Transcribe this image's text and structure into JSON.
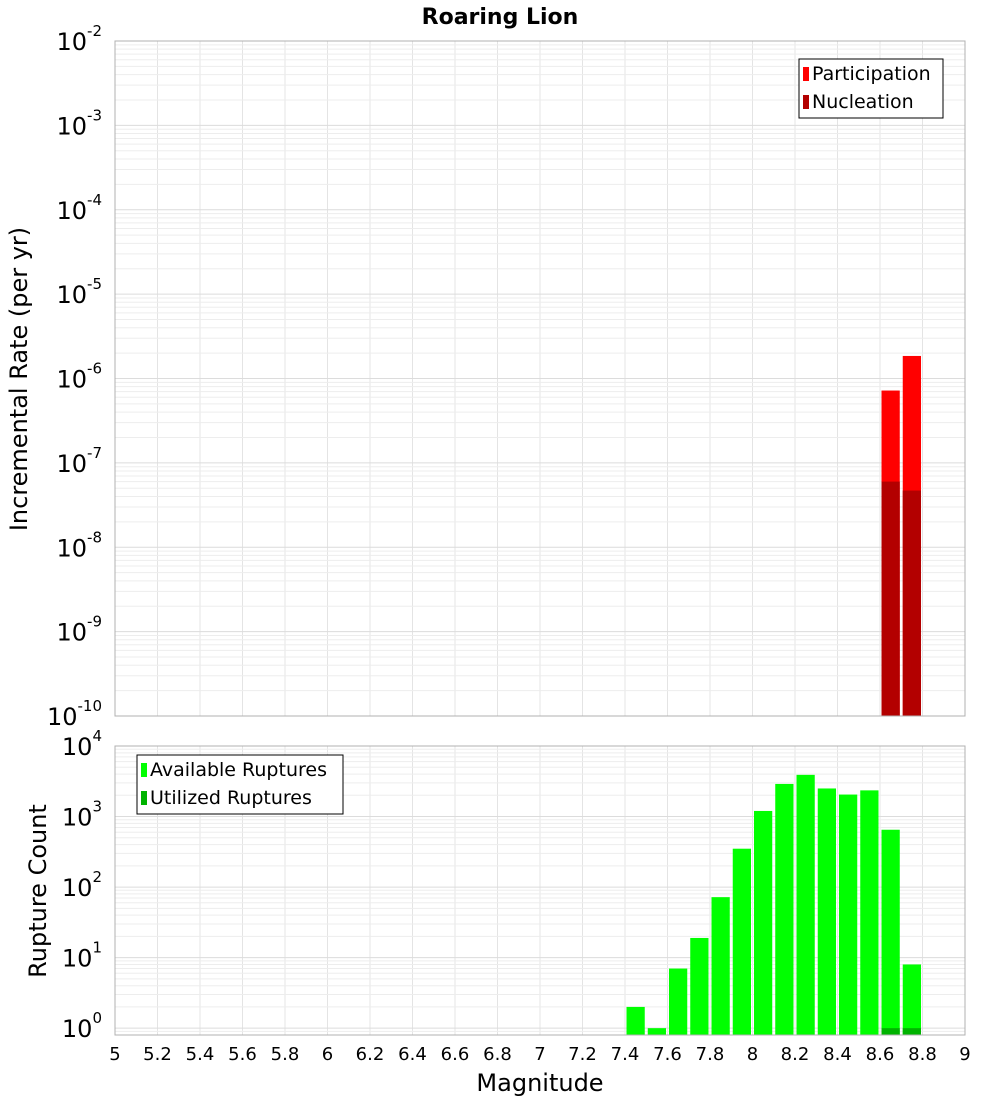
{
  "chart_data": [
    {
      "type": "bar",
      "title": "Roaring Lion",
      "xlabel": "",
      "ylabel": "Incremental Rate (per yr)",
      "yscale": "log",
      "xlim": [
        5,
        9
      ],
      "ylim": [
        1e-10,
        0.01
      ],
      "y_ticks": [
        {
          "base": "10",
          "exp": "-10",
          "value": 1e-10
        },
        {
          "base": "10",
          "exp": "-9",
          "value": 1e-09
        },
        {
          "base": "10",
          "exp": "-8",
          "value": 1e-08
        },
        {
          "base": "10",
          "exp": "-7",
          "value": 1e-07
        },
        {
          "base": "10",
          "exp": "-6",
          "value": 1e-06
        },
        {
          "base": "10",
          "exp": "-5",
          "value": 1e-05
        },
        {
          "base": "10",
          "exp": "-4",
          "value": 0.0001
        },
        {
          "base": "10",
          "exp": "-3",
          "value": 0.001
        },
        {
          "base": "10",
          "exp": "-2",
          "value": 0.01
        }
      ],
      "grid": true,
      "legend_position": "top-right",
      "bin_width": 0.1,
      "series": [
        {
          "name": "Participation",
          "color": "#ff0000",
          "x": [
            8.65,
            8.75
          ],
          "values": [
            7.2e-07,
            1.85e-06
          ]
        },
        {
          "name": "Nucleation",
          "color": "#b30000",
          "x": [
            8.65,
            8.75
          ],
          "values": [
            6e-08,
            4.7e-08
          ]
        }
      ]
    },
    {
      "type": "bar",
      "title": "",
      "xlabel": "Magnitude",
      "ylabel": "Rupture Count",
      "yscale": "log",
      "xlim": [
        5,
        9
      ],
      "ylim": [
        0.8,
        10000
      ],
      "x_tick_labels": [
        "5",
        "5.2",
        "5.4",
        "5.6",
        "5.8",
        "6",
        "6.2",
        "6.4",
        "6.6",
        "6.8",
        "7",
        "7.2",
        "7.4",
        "7.6",
        "7.8",
        "8",
        "8.2",
        "8.4",
        "8.6",
        "8.8",
        "9"
      ],
      "y_ticks": [
        {
          "base": "10",
          "exp": "0",
          "value": 1
        },
        {
          "base": "10",
          "exp": "1",
          "value": 10
        },
        {
          "base": "10",
          "exp": "2",
          "value": 100
        },
        {
          "base": "10",
          "exp": "3",
          "value": 1000
        },
        {
          "base": "10",
          "exp": "4",
          "value": 10000
        }
      ],
      "grid": true,
      "legend_position": "top-left",
      "bin_width": 0.1,
      "series": [
        {
          "name": "Available Ruptures",
          "color": "#00ff00",
          "x": [
            7.45,
            7.55,
            7.65,
            7.75,
            7.85,
            7.95,
            8.05,
            8.15,
            8.25,
            8.35,
            8.45,
            8.55,
            8.65,
            8.75
          ],
          "values": [
            2,
            1,
            7,
            19,
            72,
            350,
            1200,
            2900,
            3900,
            2500,
            2050,
            2350,
            650,
            8
          ]
        },
        {
          "name": "Utilized Ruptures",
          "color": "#00b300",
          "x": [
            8.65,
            8.75
          ],
          "values": [
            1,
            1
          ]
        }
      ]
    }
  ]
}
